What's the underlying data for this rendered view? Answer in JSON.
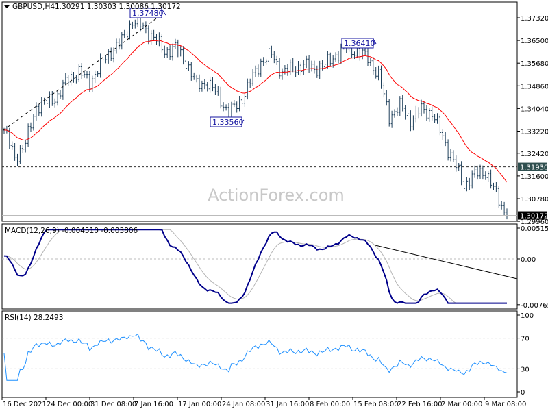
{
  "header": {
    "symbol": "GBPUSD,H4",
    "ohlc": "1.30291 1.30303 1.30086 1.30172"
  },
  "watermark": "ActionForex.com",
  "colors": {
    "bars": "#1e3f5a",
    "ma": "#ff0000",
    "macd": "#00008b",
    "signal": "#b4b4b4",
    "rsi": "#1e90ff",
    "label": "#1414a0",
    "level_tag": "#2f4f4f"
  },
  "chart_data": [
    {
      "type": "ohlc",
      "name": "GBPUSD,H4",
      "ylim": [
        1.2996,
        1.3765
      ],
      "y_ticks": [
        "1.37320",
        "1.36500",
        "1.35680",
        "1.34860",
        "1.34040",
        "1.33220",
        "1.32420",
        "1.31600",
        "1.30780",
        "1.29960"
      ],
      "x_ticks": [
        "16 Dec 2021",
        "24 Dec 00:00",
        "31 Dec 08:00",
        "7 Jan 16:00",
        "17 Jan 00:00",
        "24 Jan 08:00",
        "31 Jan 16:00",
        "8 Feb 00:00",
        "15 Feb 08:00",
        "22 Feb 16:00",
        "2 Mar 00:00",
        "9 Mar 08:00"
      ],
      "closes": [
        1.3326,
        1.3227,
        1.3276,
        1.3412,
        1.3425,
        1.345,
        1.3512,
        1.3536,
        1.3499,
        1.3561,
        1.3611,
        1.3648,
        1.3722,
        1.3697,
        1.366,
        1.3611,
        1.3623,
        1.3573,
        1.3487,
        1.3499,
        1.345,
        1.3388,
        1.3425,
        1.3499,
        1.3573,
        1.3598,
        1.3536,
        1.3549,
        1.3561,
        1.3549,
        1.3561,
        1.3598,
        1.3623,
        1.3611,
        1.3586,
        1.3524,
        1.3375,
        1.3412,
        1.3363,
        1.34,
        1.3388,
        1.3301,
        1.3214,
        1.3128,
        1.3165,
        1.3177,
        1.3091,
        1.3017
      ],
      "moving_average": "red line",
      "annotations": [
        {
          "text": "1.37480",
          "value": 1.3748
        },
        {
          "text": "1.33560",
          "value": 1.3356
        },
        {
          "text": "1.36410",
          "value": 1.3641
        }
      ],
      "horizontal_level": {
        "text": "1.31930",
        "value": 1.3193
      },
      "current_price": {
        "text": "1.30172",
        "value": 1.30172
      },
      "trendline": "dashed rising channel line from Dec low to 1.37480 high"
    },
    {
      "type": "line",
      "title": "MACD(12,26,9) -0.004510 -0.003806",
      "ylim": [
        -0.00765,
        0.005152
      ],
      "y_ticks": [
        "0.005152",
        "0.00",
        "-0.00765"
      ],
      "series": [
        {
          "name": "MACD",
          "last": -0.00451
        },
        {
          "name": "Signal",
          "last": -0.003806
        }
      ],
      "trendline": "falling resistance line from mid-Feb peak"
    },
    {
      "type": "line",
      "title": "RSI(14) 28.2493",
      "ylim": [
        0,
        100
      ],
      "y_ticks": [
        "100",
        "70",
        "30",
        "0"
      ],
      "levels": [
        70,
        30
      ],
      "last": 28.2493
    }
  ]
}
